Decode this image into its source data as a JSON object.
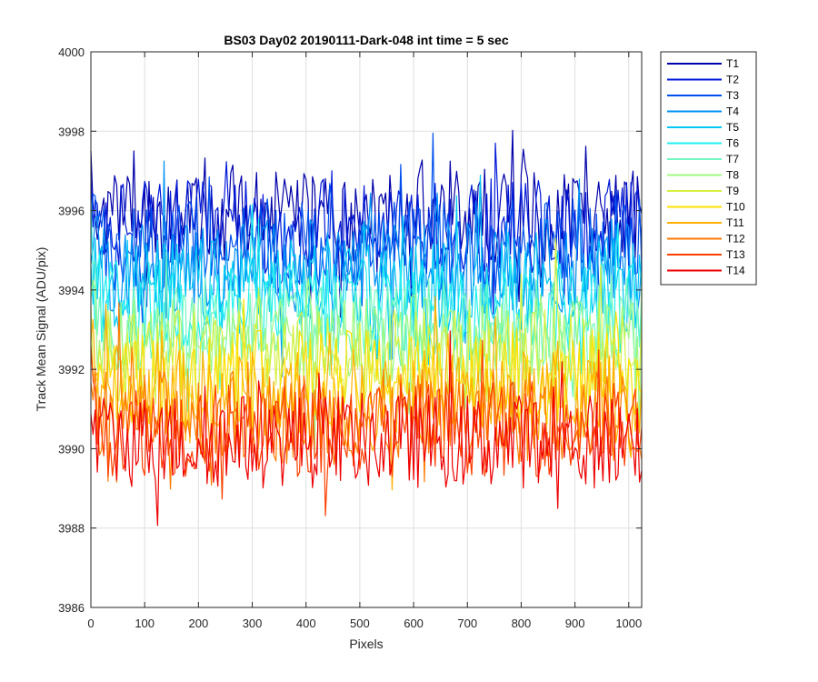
{
  "chart_data": {
    "type": "line",
    "title": "BS03 Day02 20190111-Dark-048 int time = 5 sec",
    "xlabel": "Pixels",
    "ylabel": "Track Mean Signal (ADU/pix)",
    "xlim": [
      0,
      1024
    ],
    "ylim": [
      3986,
      4000
    ],
    "xticks": [
      0,
      100,
      200,
      300,
      400,
      500,
      600,
      700,
      800,
      900,
      1000
    ],
    "yticks": [
      3986,
      3988,
      3990,
      3992,
      3994,
      3996,
      3998,
      4000
    ],
    "grid": true,
    "legend_position": "outside-top-right",
    "x_step": 4,
    "noise_amplitude": 1.2,
    "series": [
      {
        "name": "T1",
        "color": "#0000aa",
        "mean": 3995.9
      },
      {
        "name": "T2",
        "color": "#0018d8",
        "mean": 3995.6
      },
      {
        "name": "T3",
        "color": "#0050ee",
        "mean": 3995.1
      },
      {
        "name": "T4",
        "color": "#0090f5",
        "mean": 3994.6
      },
      {
        "name": "T5",
        "color": "#00c8f5",
        "mean": 3994.1
      },
      {
        "name": "T6",
        "color": "#20f0f0",
        "mean": 3993.6
      },
      {
        "name": "T7",
        "color": "#70f8c0",
        "mean": 3993.1
      },
      {
        "name": "T8",
        "color": "#a0f880",
        "mean": 3992.7
      },
      {
        "name": "T9",
        "color": "#d8f040",
        "mean": 3992.3
      },
      {
        "name": "T10",
        "color": "#ffe000",
        "mean": 3991.8
      },
      {
        "name": "T11",
        "color": "#ffb000",
        "mean": 3991.3
      },
      {
        "name": "T12",
        "color": "#ff7a00",
        "mean": 3990.8
      },
      {
        "name": "T13",
        "color": "#ff4000",
        "mean": 3990.5
      },
      {
        "name": "T14",
        "color": "#ee0000",
        "mean": 3990.2
      }
    ]
  }
}
